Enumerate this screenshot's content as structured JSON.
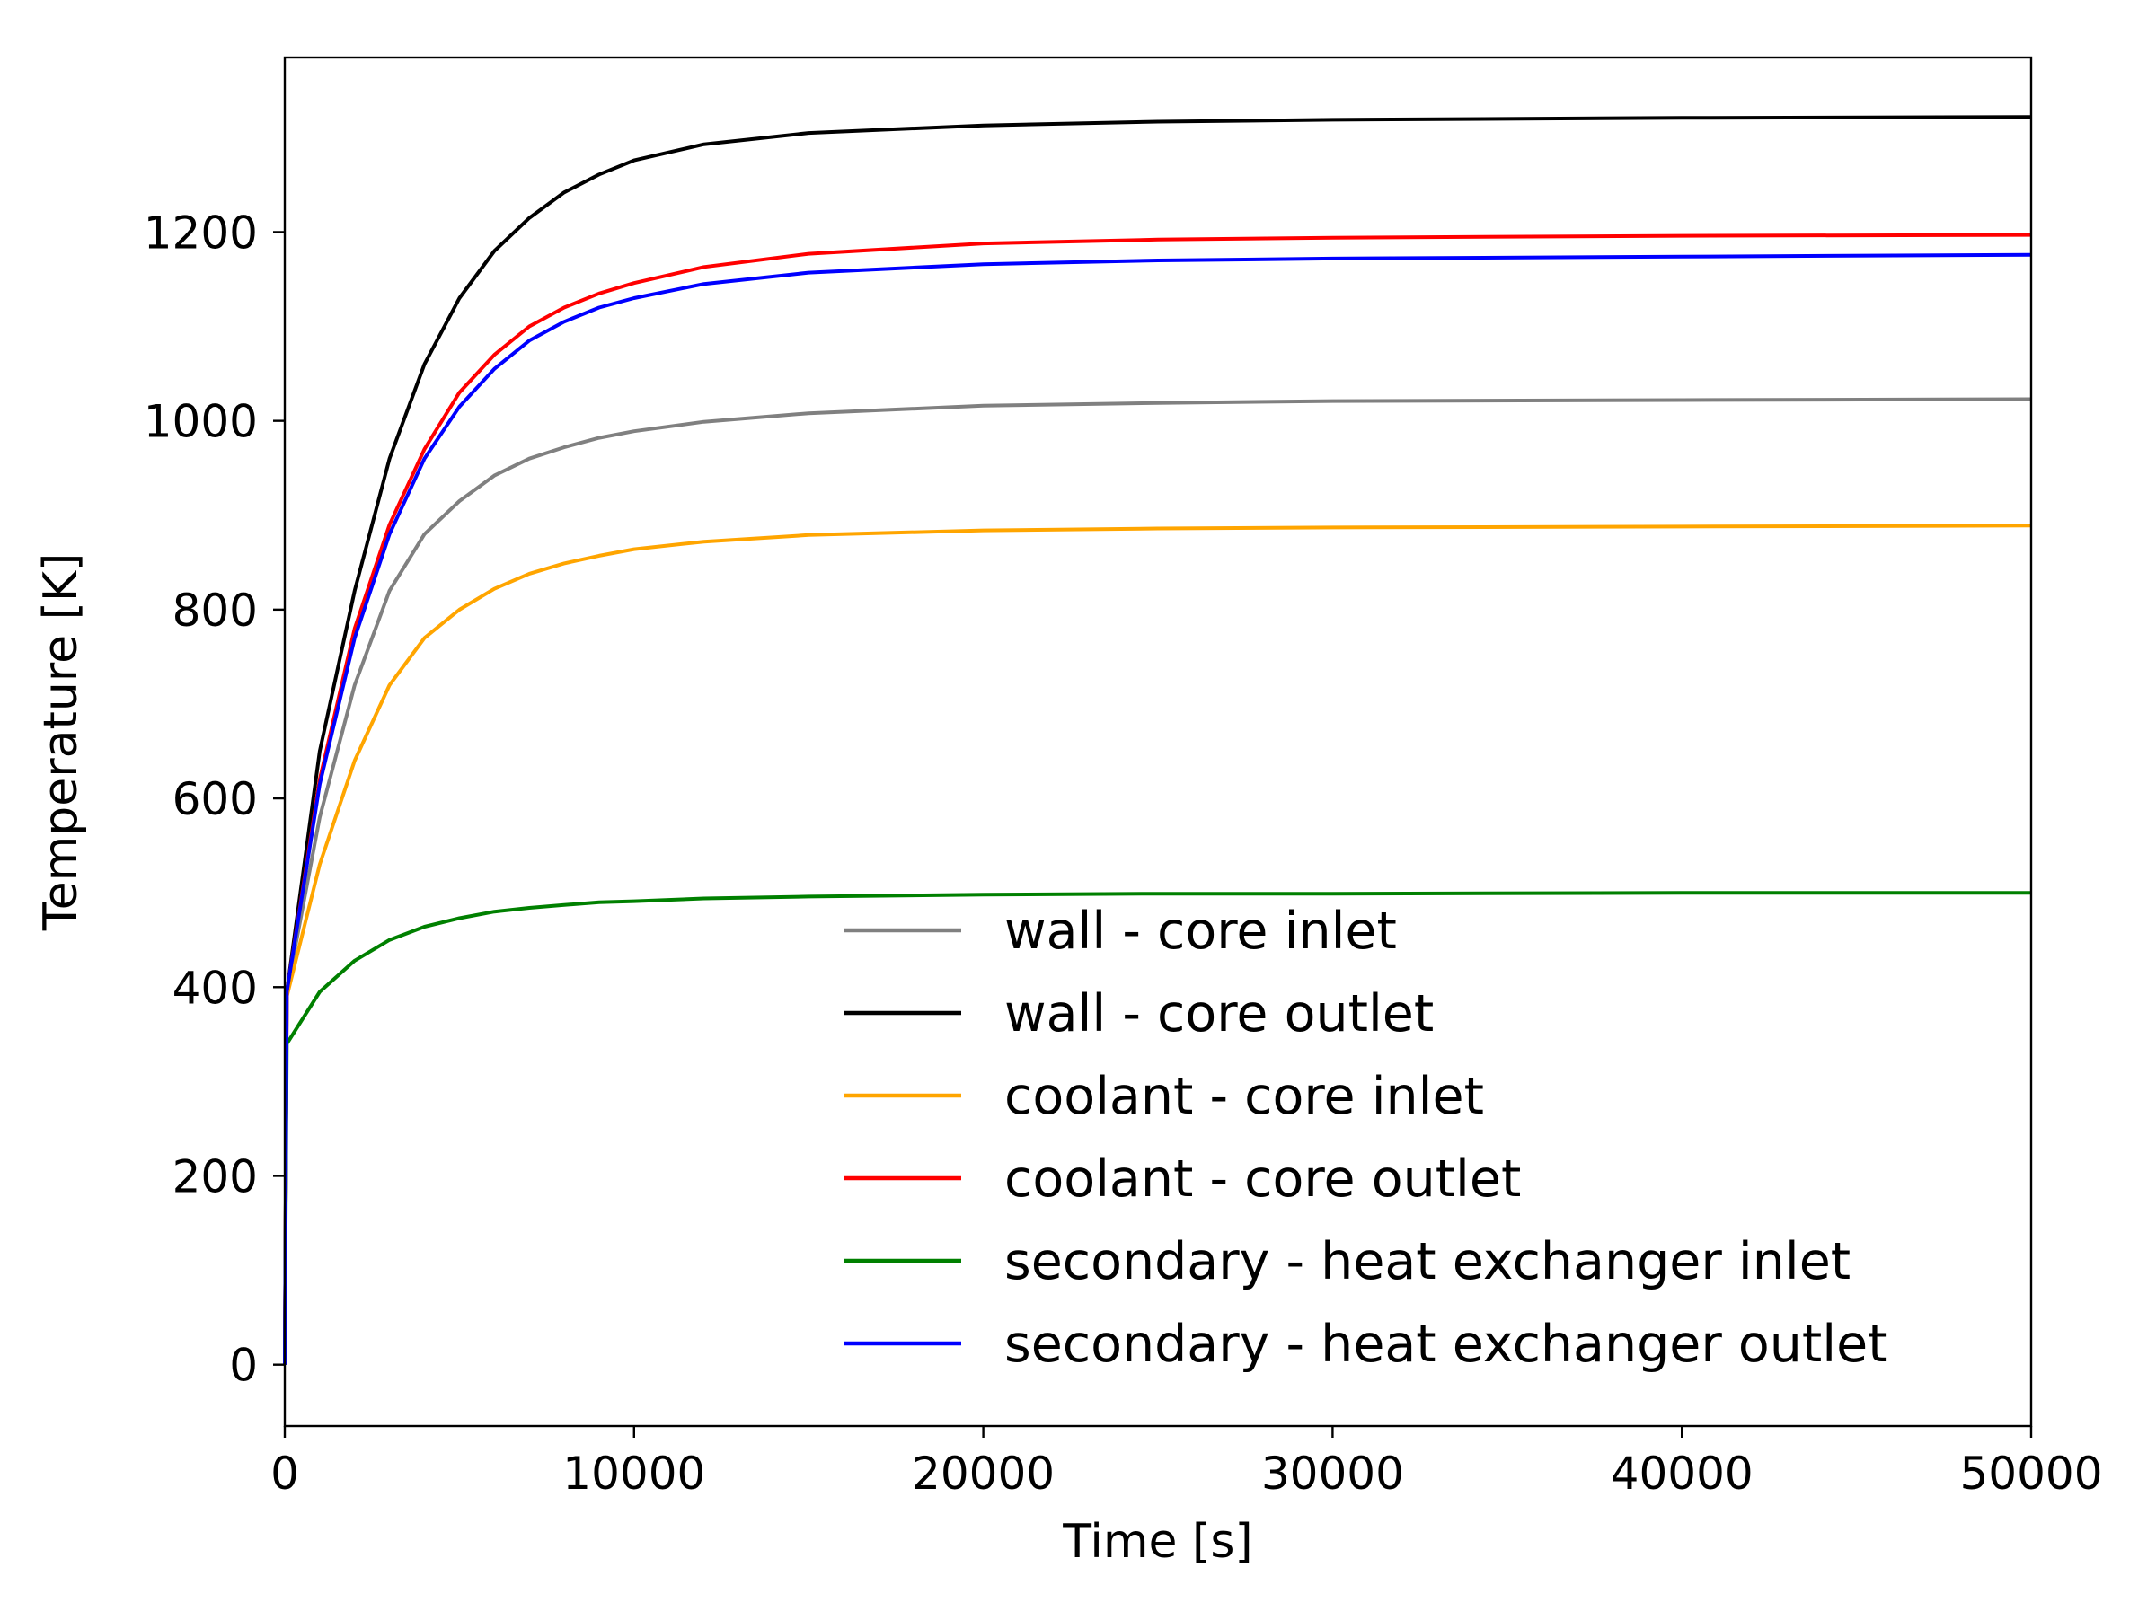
{
  "chart_data": {
    "type": "line",
    "title": "",
    "xlabel": "Time [s]",
    "ylabel": "Temperature [K]",
    "xlim": [
      0,
      50000
    ],
    "ylim": [
      -65,
      1385
    ],
    "xticks": [
      0,
      10000,
      20000,
      30000,
      40000,
      50000
    ],
    "xtick_labels": [
      "0",
      "10000",
      "20000",
      "30000",
      "40000",
      "50000"
    ],
    "yticks": [
      0,
      200,
      400,
      600,
      800,
      1000,
      1200
    ],
    "ytick_labels": [
      "0",
      "200",
      "400",
      "600",
      "800",
      "1000",
      "1200"
    ],
    "grid": false,
    "legend_position": "lower-right",
    "x": [
      0,
      60,
      1000,
      2000,
      3000,
      4000,
      5000,
      6000,
      7000,
      8000,
      9000,
      10000,
      12000,
      15000,
      20000,
      25000,
      30000,
      40000,
      50000
    ],
    "series": [
      {
        "name": "wall - core inlet",
        "color": "#808080",
        "values": [
          0,
          395,
          580,
          720,
          820,
          880,
          915,
          942,
          960,
          972,
          982,
          989,
          999,
          1008,
          1016,
          1019,
          1021,
          1022,
          1023
        ]
      },
      {
        "name": "wall - core outlet",
        "color": "#000000",
        "values": [
          0,
          395,
          650,
          820,
          960,
          1060,
          1130,
          1180,
          1215,
          1242,
          1261,
          1276,
          1293,
          1305,
          1313,
          1317,
          1319,
          1321,
          1322
        ]
      },
      {
        "name": "coolant - core inlet",
        "color": "#ffa500",
        "values": [
          0,
          390,
          530,
          640,
          720,
          770,
          800,
          822,
          838,
          849,
          857,
          864,
          872,
          879,
          884,
          886,
          887,
          888,
          889
        ]
      },
      {
        "name": "coolant - core outlet",
        "color": "#ff0000",
        "values": [
          0,
          395,
          620,
          780,
          890,
          970,
          1030,
          1070,
          1100,
          1120,
          1135,
          1146,
          1163,
          1177,
          1188,
          1192,
          1194,
          1196,
          1197
        ]
      },
      {
        "name": "secondary - heat exchanger inlet",
        "color": "#008000",
        "values": [
          0,
          340,
          395,
          428,
          450,
          464,
          473,
          480,
          484,
          487,
          490,
          491,
          494,
          496,
          498,
          499,
          499,
          500,
          500
        ]
      },
      {
        "name": "secondary - heat exchanger outlet",
        "color": "#0000ff",
        "values": [
          0,
          395,
          615,
          770,
          880,
          960,
          1015,
          1055,
          1085,
          1105,
          1120,
          1130,
          1145,
          1157,
          1166,
          1170,
          1172,
          1174,
          1176
        ]
      }
    ]
  }
}
